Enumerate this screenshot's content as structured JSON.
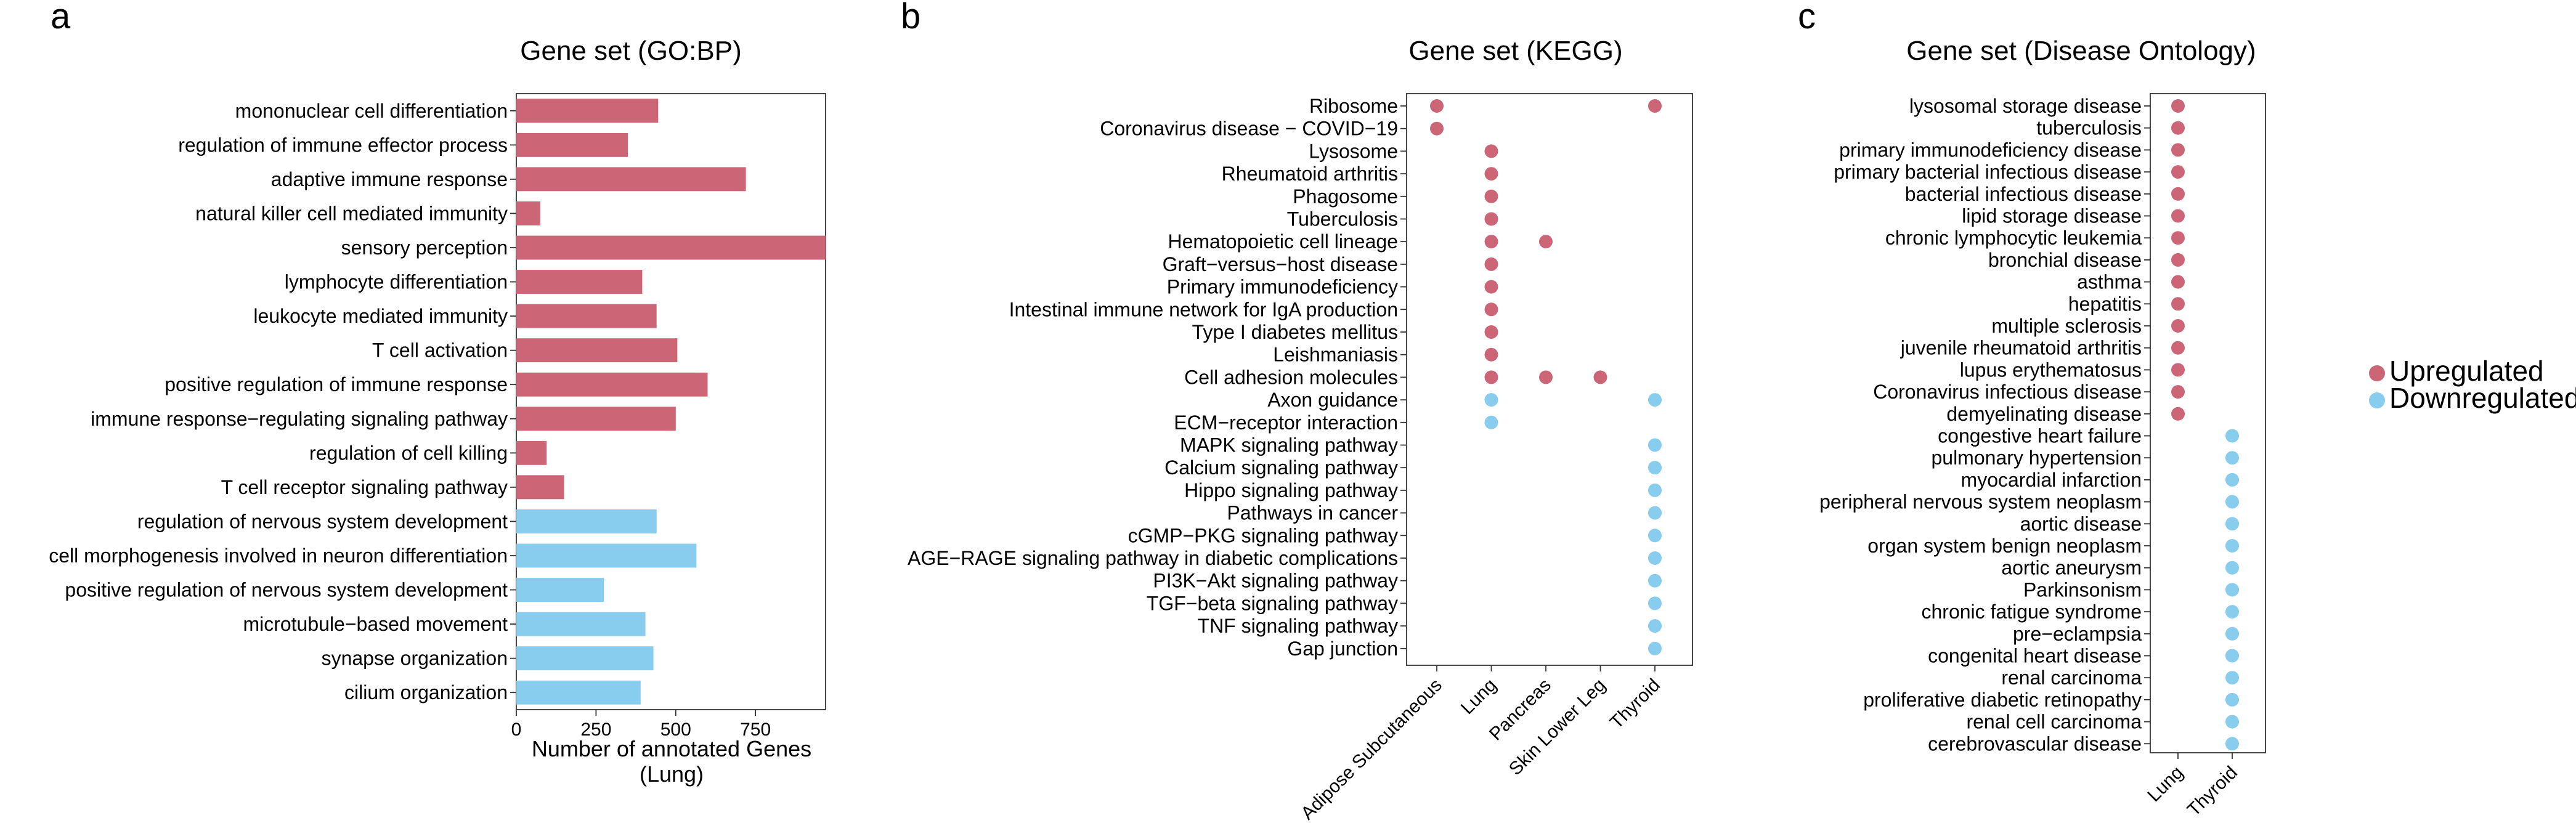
{
  "colors": {
    "upregulated": "#CC6677",
    "downregulated": "#88CCEE"
  },
  "legend": {
    "position": "right",
    "items": [
      {
        "label": "Upregulated",
        "color": "#CC6677"
      },
      {
        "label": "Downregulated",
        "color": "#88CCEE"
      }
    ]
  },
  "chart_data": [
    {
      "panel": "a",
      "type": "bar",
      "orientation": "horizontal",
      "title": "Gene set (GO:BP)",
      "xlabel": "Number of annotated Genes\n(Lung)",
      "xlim": [
        0,
        970
      ],
      "xticks": [
        0,
        250,
        500,
        750
      ],
      "grid": false,
      "categories": [
        "mononuclear cell differentiation",
        "regulation of immune effector process",
        "adaptive immune response",
        "natural killer cell mediated immunity",
        "sensory perception",
        "lymphocyte differentiation",
        "leukocyte mediated immunity",
        "T cell activation",
        "positive regulation of immune response",
        "immune response−regulating signaling pathway",
        "regulation of cell killing",
        "T cell receptor signaling pathway",
        "regulation of nervous system development",
        "cell morphogenesis involved in neuron differentiation",
        "positive regulation of nervous system development",
        "microtubule−based movement",
        "synapse organization",
        "cilium organization"
      ],
      "values": [
        445,
        350,
        720,
        75,
        970,
        395,
        440,
        505,
        600,
        500,
        95,
        150,
        440,
        565,
        275,
        405,
        430,
        390
      ],
      "direction": [
        "up",
        "up",
        "up",
        "up",
        "up",
        "up",
        "up",
        "up",
        "up",
        "up",
        "up",
        "up",
        "down",
        "down",
        "down",
        "down",
        "down",
        "down"
      ]
    },
    {
      "panel": "b",
      "type": "scatter",
      "title": "Gene set (KEGG)",
      "grid": false,
      "x_categories": [
        "Adipose Subcutaneous",
        "Lung",
        "Pancreas",
        "Skin Lower Leg",
        "Thyroid"
      ],
      "y_categories": [
        "Ribosome",
        "Coronavirus disease − COVID−19",
        "Lysosome",
        "Rheumatoid arthritis",
        "Phagosome",
        "Tuberculosis",
        "Hematopoietic cell lineage",
        "Graft−versus−host disease",
        "Primary immunodeficiency",
        "Intestinal immune network for IgA production",
        "Type I diabetes mellitus",
        "Leishmaniasis",
        "Cell adhesion molecules",
        "Axon guidance",
        "ECM−receptor interaction",
        "MAPK signaling pathway",
        "Calcium signaling pathway",
        "Hippo signaling pathway",
        "Pathways in cancer",
        "cGMP−PKG signaling pathway",
        "AGE−RAGE signaling pathway in diabetic complications",
        "PI3K−Akt signaling pathway",
        "TGF−beta signaling pathway",
        "TNF signaling pathway",
        "Gap junction"
      ],
      "points": [
        {
          "x": "Adipose Subcutaneous",
          "y": "Ribosome",
          "direction": "up"
        },
        {
          "x": "Thyroid",
          "y": "Ribosome",
          "direction": "up"
        },
        {
          "x": "Adipose Subcutaneous",
          "y": "Coronavirus disease − COVID−19",
          "direction": "up"
        },
        {
          "x": "Lung",
          "y": "Lysosome",
          "direction": "up"
        },
        {
          "x": "Lung",
          "y": "Rheumatoid arthritis",
          "direction": "up"
        },
        {
          "x": "Lung",
          "y": "Phagosome",
          "direction": "up"
        },
        {
          "x": "Lung",
          "y": "Tuberculosis",
          "direction": "up"
        },
        {
          "x": "Lung",
          "y": "Hematopoietic cell lineage",
          "direction": "up"
        },
        {
          "x": "Pancreas",
          "y": "Hematopoietic cell lineage",
          "direction": "up"
        },
        {
          "x": "Lung",
          "y": "Graft−versus−host disease",
          "direction": "up"
        },
        {
          "x": "Lung",
          "y": "Primary immunodeficiency",
          "direction": "up"
        },
        {
          "x": "Lung",
          "y": "Intestinal immune network for IgA production",
          "direction": "up"
        },
        {
          "x": "Lung",
          "y": "Type I diabetes mellitus",
          "direction": "up"
        },
        {
          "x": "Lung",
          "y": "Leishmaniasis",
          "direction": "up"
        },
        {
          "x": "Lung",
          "y": "Cell adhesion molecules",
          "direction": "up"
        },
        {
          "x": "Pancreas",
          "y": "Cell adhesion molecules",
          "direction": "up"
        },
        {
          "x": "Skin Lower Leg",
          "y": "Cell adhesion molecules",
          "direction": "up"
        },
        {
          "x": "Lung",
          "y": "Axon guidance",
          "direction": "down"
        },
        {
          "x": "Thyroid",
          "y": "Axon guidance",
          "direction": "down"
        },
        {
          "x": "Lung",
          "y": "ECM−receptor interaction",
          "direction": "down"
        },
        {
          "x": "Thyroid",
          "y": "MAPK signaling pathway",
          "direction": "down"
        },
        {
          "x": "Thyroid",
          "y": "Calcium signaling pathway",
          "direction": "down"
        },
        {
          "x": "Thyroid",
          "y": "Hippo signaling pathway",
          "direction": "down"
        },
        {
          "x": "Thyroid",
          "y": "Pathways in cancer",
          "direction": "down"
        },
        {
          "x": "Thyroid",
          "y": "cGMP−PKG signaling pathway",
          "direction": "down"
        },
        {
          "x": "Thyroid",
          "y": "AGE−RAGE signaling pathway in diabetic complications",
          "direction": "down"
        },
        {
          "x": "Thyroid",
          "y": "PI3K−Akt signaling pathway",
          "direction": "down"
        },
        {
          "x": "Thyroid",
          "y": "TGF−beta signaling pathway",
          "direction": "down"
        },
        {
          "x": "Thyroid",
          "y": "TNF signaling pathway",
          "direction": "down"
        },
        {
          "x": "Thyroid",
          "y": "Gap junction",
          "direction": "down"
        }
      ]
    },
    {
      "panel": "c",
      "type": "scatter",
      "title": "Gene set (Disease Ontology)",
      "grid": false,
      "x_categories": [
        "Lung",
        "Thyroid"
      ],
      "y_categories": [
        "lysosomal storage disease",
        "tuberculosis",
        "primary immunodeficiency disease",
        "primary bacterial infectious disease",
        "bacterial infectious disease",
        "lipid storage disease",
        "chronic lymphocytic leukemia",
        "bronchial disease",
        "asthma",
        "hepatitis",
        "multiple sclerosis",
        "juvenile rheumatoid arthritis",
        "lupus erythematosus",
        "Coronavirus infectious disease",
        "demyelinating disease",
        "congestive heart failure",
        "pulmonary hypertension",
        "myocardial infarction",
        "peripheral nervous system neoplasm",
        "aortic disease",
        "organ system benign neoplasm",
        "aortic aneurysm",
        "Parkinsonism",
        "chronic fatigue syndrome",
        "pre−eclampsia",
        "congenital heart disease",
        "renal carcinoma",
        "proliferative diabetic retinopathy",
        "renal cell carcinoma",
        "cerebrovascular disease"
      ],
      "points_up_x": "Lung",
      "up_count": 15,
      "points_down_x": "Thyroid",
      "down_count": 15
    }
  ]
}
